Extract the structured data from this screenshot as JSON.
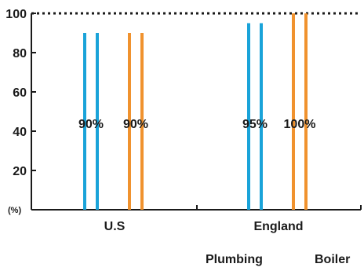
{
  "chart_data": {
    "type": "bar",
    "title": "",
    "xlabel": "",
    "ylabel": "",
    "y_unit_label": "(%)",
    "ylim": [
      0,
      100
    ],
    "yticks": [
      20,
      40,
      60,
      80,
      100
    ],
    "reference_line": 100,
    "categories": [
      "U.S",
      "England"
    ],
    "series": [
      {
        "name": "Plumbing",
        "color": "#1aa3d9",
        "values": [
          90,
          95
        ],
        "labels": [
          "90%",
          "95%"
        ]
      },
      {
        "name": "Boiler",
        "color": "#f0922e",
        "values": [
          90,
          100
        ],
        "labels": [
          "90%",
          "100%"
        ]
      }
    ],
    "bar_style": "double-line outline",
    "legend_placement": "bottom-right",
    "grid": false
  }
}
